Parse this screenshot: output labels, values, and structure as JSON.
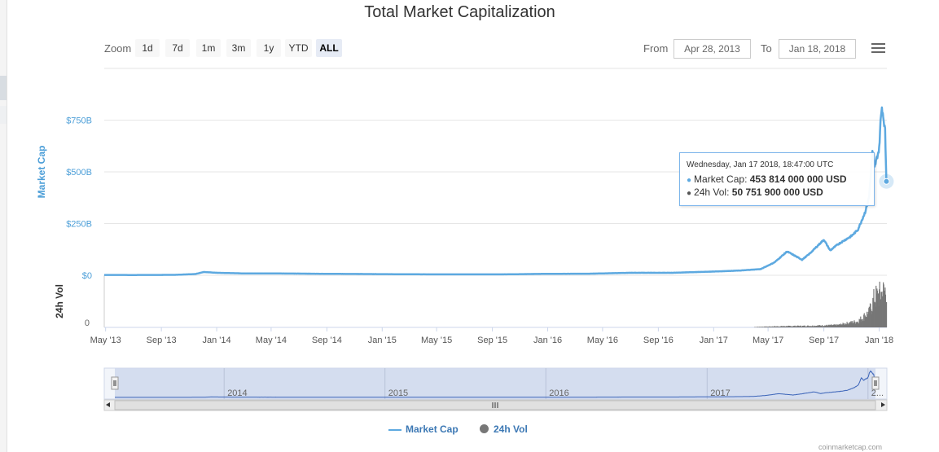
{
  "title": "Total Market Capitalization",
  "zoom": {
    "label": "Zoom",
    "buttons": [
      {
        "label": "1d",
        "active": false
      },
      {
        "label": "7d",
        "active": false
      },
      {
        "label": "1m",
        "active": false
      },
      {
        "label": "3m",
        "active": false
      },
      {
        "label": "1y",
        "active": false
      },
      {
        "label": "YTD",
        "active": false
      },
      {
        "label": "ALL",
        "active": true
      }
    ]
  },
  "range": {
    "from_label": "From",
    "from_value": "Apr 28, 2013",
    "to_label": "To",
    "to_value": "Jan 18, 2018"
  },
  "menu_icon": "hamburger-menu-icon",
  "tooltip": {
    "date": "Wednesday, Jan 17 2018, 18:47:00 UTC",
    "mcap_label": "Market Cap:",
    "mcap_value": "453 814 000 000 USD",
    "vol_label": "24h Vol:",
    "vol_value": "50 751 900 000 USD"
  },
  "legend": [
    {
      "name": "Market Cap",
      "color": "#5da9e0"
    },
    {
      "name": "24h Vol",
      "color": "#777777"
    }
  ],
  "credits": "coinmarketcap.com",
  "colors": {
    "market_cap": "#5da9e0",
    "volume": "#777777",
    "axis_blue": "#4d9fd8",
    "navigator_fill": "#cfd8ec"
  },
  "chart_data": {
    "type": "line",
    "x_axis_ticks": [
      "May '13",
      "Sep '13",
      "Jan '14",
      "May '14",
      "Sep '14",
      "Jan '15",
      "May '15",
      "Sep '15",
      "Jan '16",
      "May '16",
      "Sep '16",
      "Jan '17",
      "May '17",
      "Sep '17",
      "Jan '18"
    ],
    "y_axis": {
      "label": "Market Cap",
      "ticks": [
        "$0",
        "$250B",
        "$500B",
        "$750B"
      ],
      "ylim": [
        0,
        1000
      ]
    },
    "volume_axis": {
      "label": "24h Vol",
      "ticks": [
        "0"
      ]
    },
    "navigator_labels": [
      "2014",
      "2015",
      "2016",
      "2017",
      "2..."
    ],
    "series": [
      {
        "name": "Market Cap",
        "unit": "billion USD",
        "x": [
          "2013-04-28",
          "2013-07-01",
          "2013-10-01",
          "2013-11-15",
          "2013-12-04",
          "2014-01-01",
          "2014-03-01",
          "2014-06-01",
          "2014-09-01",
          "2015-01-01",
          "2015-04-01",
          "2015-07-01",
          "2015-10-01",
          "2016-01-01",
          "2016-04-01",
          "2016-07-01",
          "2016-10-01",
          "2017-01-01",
          "2017-03-01",
          "2017-04-15",
          "2017-05-15",
          "2017-06-12",
          "2017-07-15",
          "2017-08-01",
          "2017-09-01",
          "2017-09-15",
          "2017-10-01",
          "2017-11-01",
          "2017-11-15",
          "2017-12-01",
          "2017-12-10",
          "2017-12-17",
          "2017-12-22",
          "2017-12-26",
          "2018-01-01",
          "2018-01-04",
          "2018-01-07",
          "2018-01-10",
          "2018-01-14",
          "2018-01-17"
        ],
        "values": [
          1.6,
          1.3,
          2.0,
          6.0,
          16.0,
          12.0,
          9.0,
          8.5,
          7.0,
          5.5,
          4.5,
          4.2,
          4.5,
          7.0,
          7.5,
          12.0,
          12.0,
          18.0,
          23.0,
          30.0,
          62.0,
          115.0,
          75.0,
          105.0,
          172.0,
          120.0,
          148.0,
          190.0,
          220.0,
          305.0,
          380.0,
          600.0,
          520.0,
          560.0,
          610.0,
          740.0,
          813.0,
          770.0,
          700.0,
          453.8
        ]
      },
      {
        "name": "24h Vol",
        "unit": "billion USD",
        "x": [
          "2017-04-01",
          "2017-06-01",
          "2017-08-01",
          "2017-10-01",
          "2017-11-15",
          "2017-12-10",
          "2017-12-22",
          "2018-01-05",
          "2018-01-17"
        ],
        "values": [
          0.5,
          1.5,
          2.0,
          3.0,
          8.0,
          20.0,
          40.0,
          45.0,
          50.75
        ]
      }
    ],
    "legend_position": "bottom-center",
    "grid": true
  }
}
